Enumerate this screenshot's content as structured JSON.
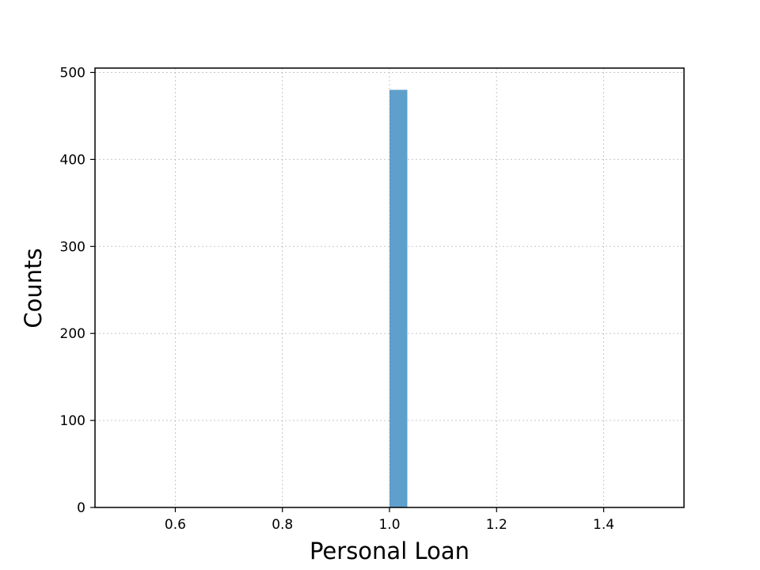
{
  "chart_data": {
    "type": "bar",
    "title": "",
    "xlabel": "Personal Loan",
    "ylabel": "Counts",
    "xlim": [
      0.45,
      1.55
    ],
    "ylim": [
      0,
      505
    ],
    "x_ticks": [
      {
        "value": 0.6,
        "label": "0.6"
      },
      {
        "value": 0.8,
        "label": "0.8"
      },
      {
        "value": 1.0,
        "label": "1.0"
      },
      {
        "value": 1.2,
        "label": "1.2"
      },
      {
        "value": 1.4,
        "label": "1.4"
      }
    ],
    "y_ticks": [
      {
        "value": 0,
        "label": "0"
      },
      {
        "value": 100,
        "label": "100"
      },
      {
        "value": 200,
        "label": "200"
      },
      {
        "value": 300,
        "label": "300"
      },
      {
        "value": 400,
        "label": "400"
      },
      {
        "value": 500,
        "label": "500"
      }
    ],
    "grid": true,
    "bar_color": "#5f9fcc",
    "bars": [
      {
        "x_start": 1.0,
        "x_end": 1.0333,
        "value": 480
      }
    ]
  }
}
